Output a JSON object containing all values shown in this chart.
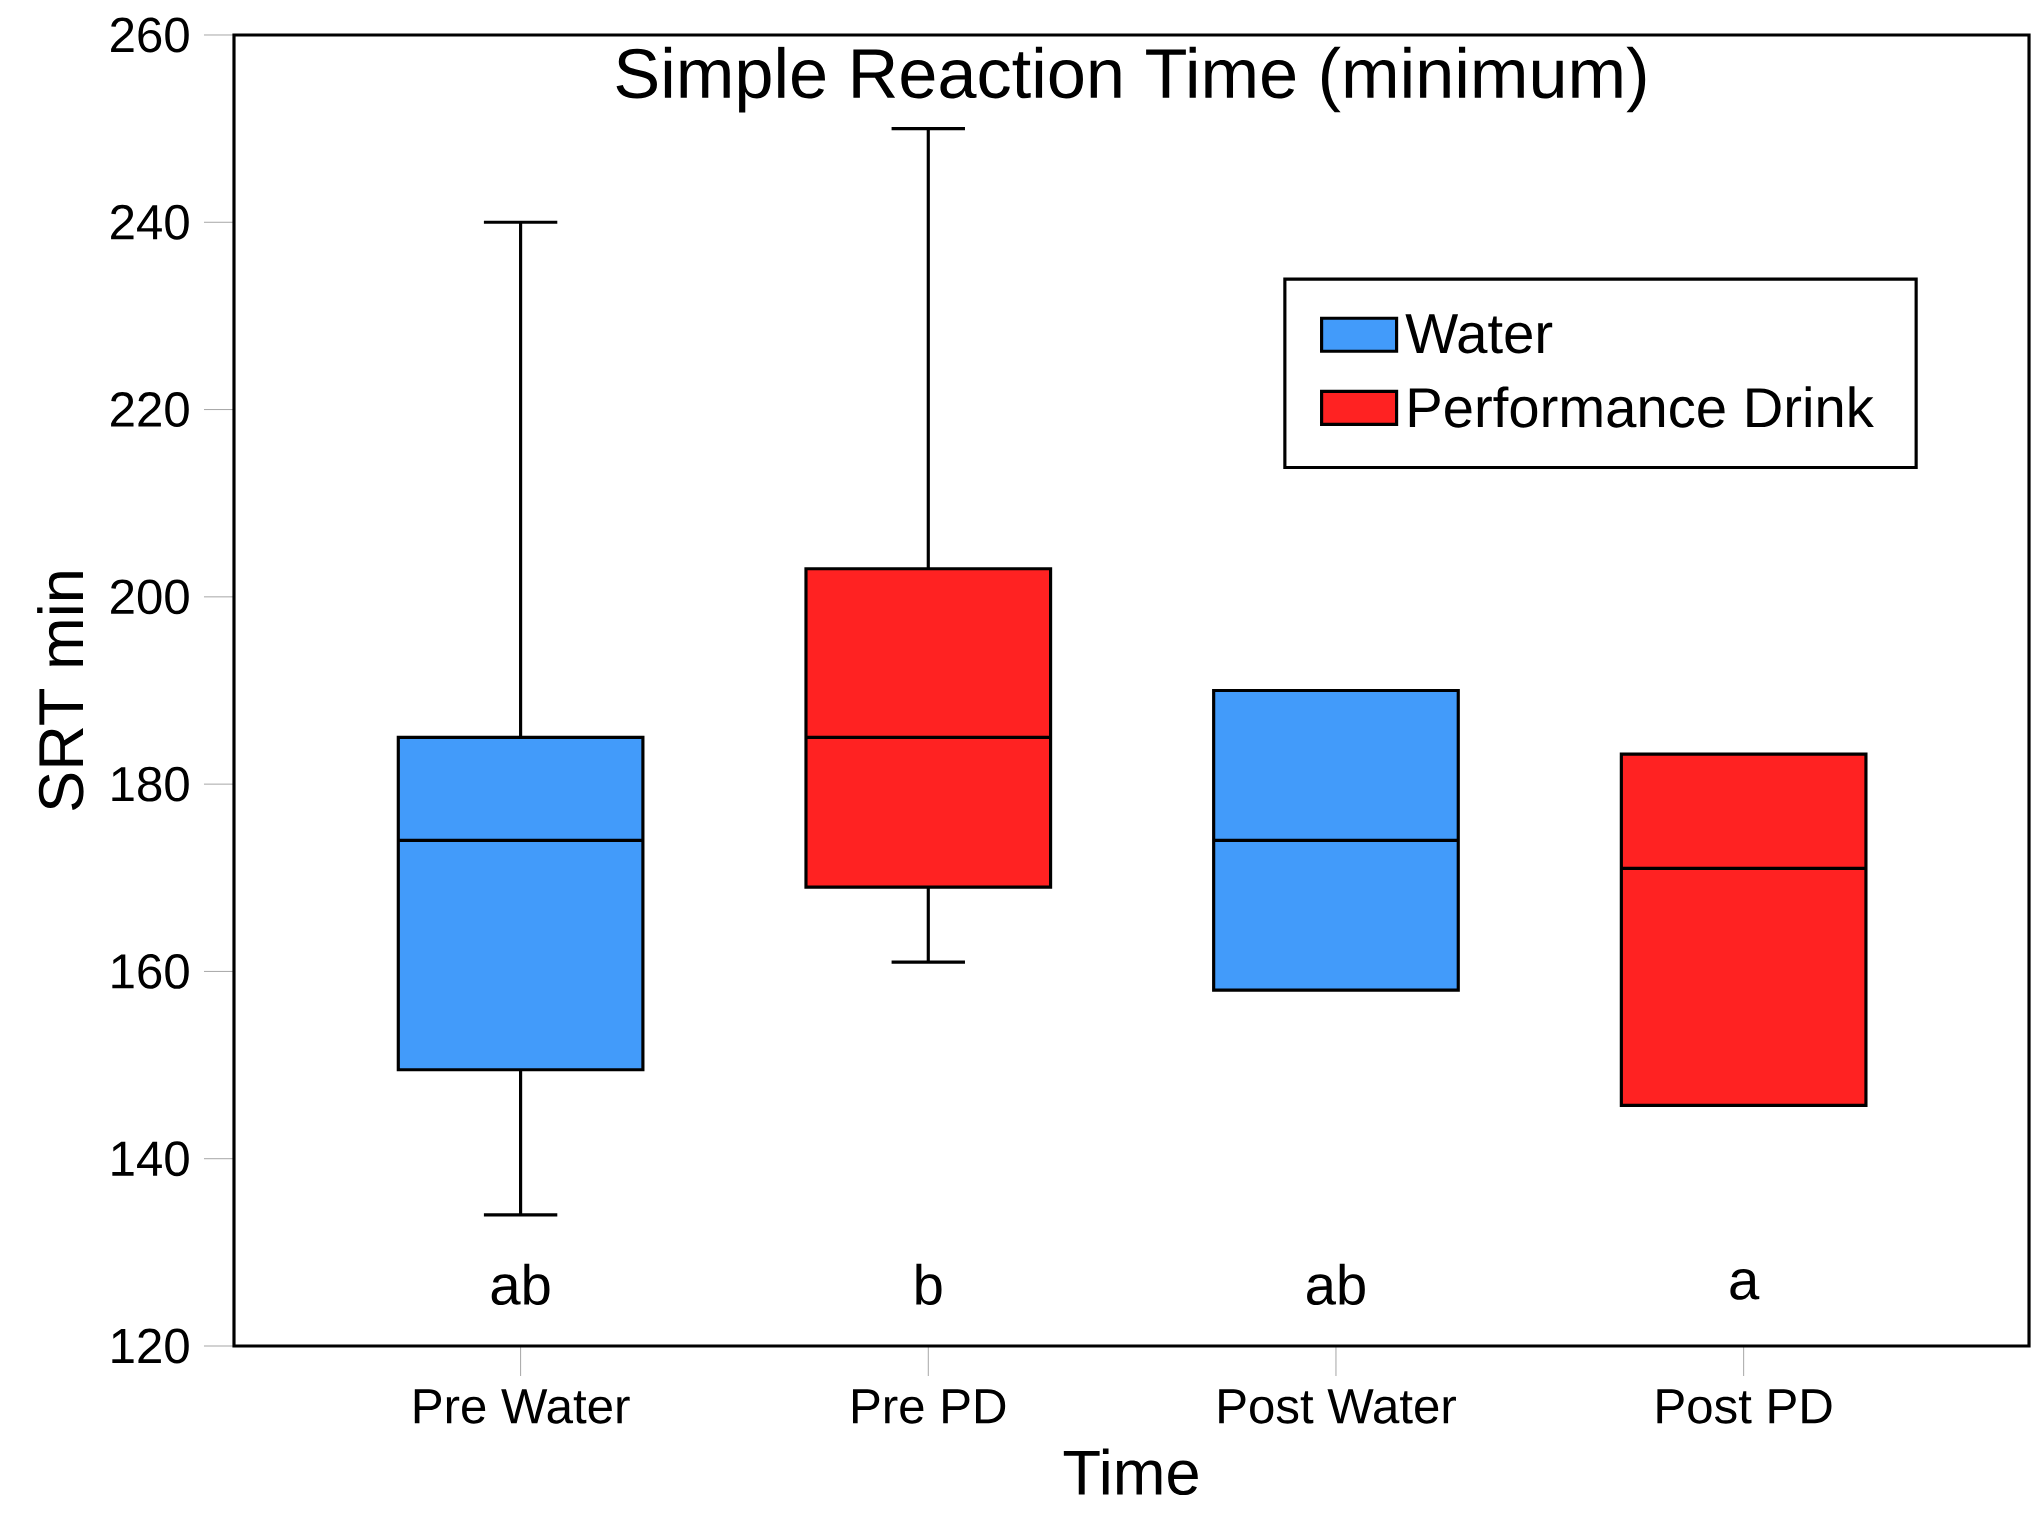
{
  "chart_data": {
    "type": "box",
    "title": "Simple Reaction Time (minimum)",
    "xlabel": "Time",
    "ylabel": "SRT min",
    "categories": [
      "Pre Water",
      "Pre PD",
      "Post Water",
      "Post PD"
    ],
    "series": [
      {
        "name": "Water",
        "color": "#429bfa",
        "boxes": [
          {
            "low": 134,
            "q1": 149.5,
            "median": 174,
            "q3": 185,
            "high": 240
          },
          null,
          {
            "low": 158,
            "q1": 158,
            "median": 174,
            "q3": 190,
            "high": 190
          },
          null
        ]
      },
      {
        "name": "Performance Drink",
        "color": "#ff2222",
        "boxes": [
          null,
          {
            "low": 161,
            "q1": 169,
            "median": 185,
            "q3": 203,
            "high": 250
          },
          null,
          {
            "low": 145.7,
            "q1": 145.7,
            "median": 171,
            "q3": 183.2,
            "high": 183.2
          }
        ]
      }
    ],
    "ylim": [
      120,
      260
    ],
    "yticks": [
      120,
      140,
      160,
      180,
      200,
      220,
      240,
      260
    ],
    "annotations": [
      "ab",
      "b",
      "ab",
      "a"
    ],
    "legend": "top right",
    "grid": false
  }
}
